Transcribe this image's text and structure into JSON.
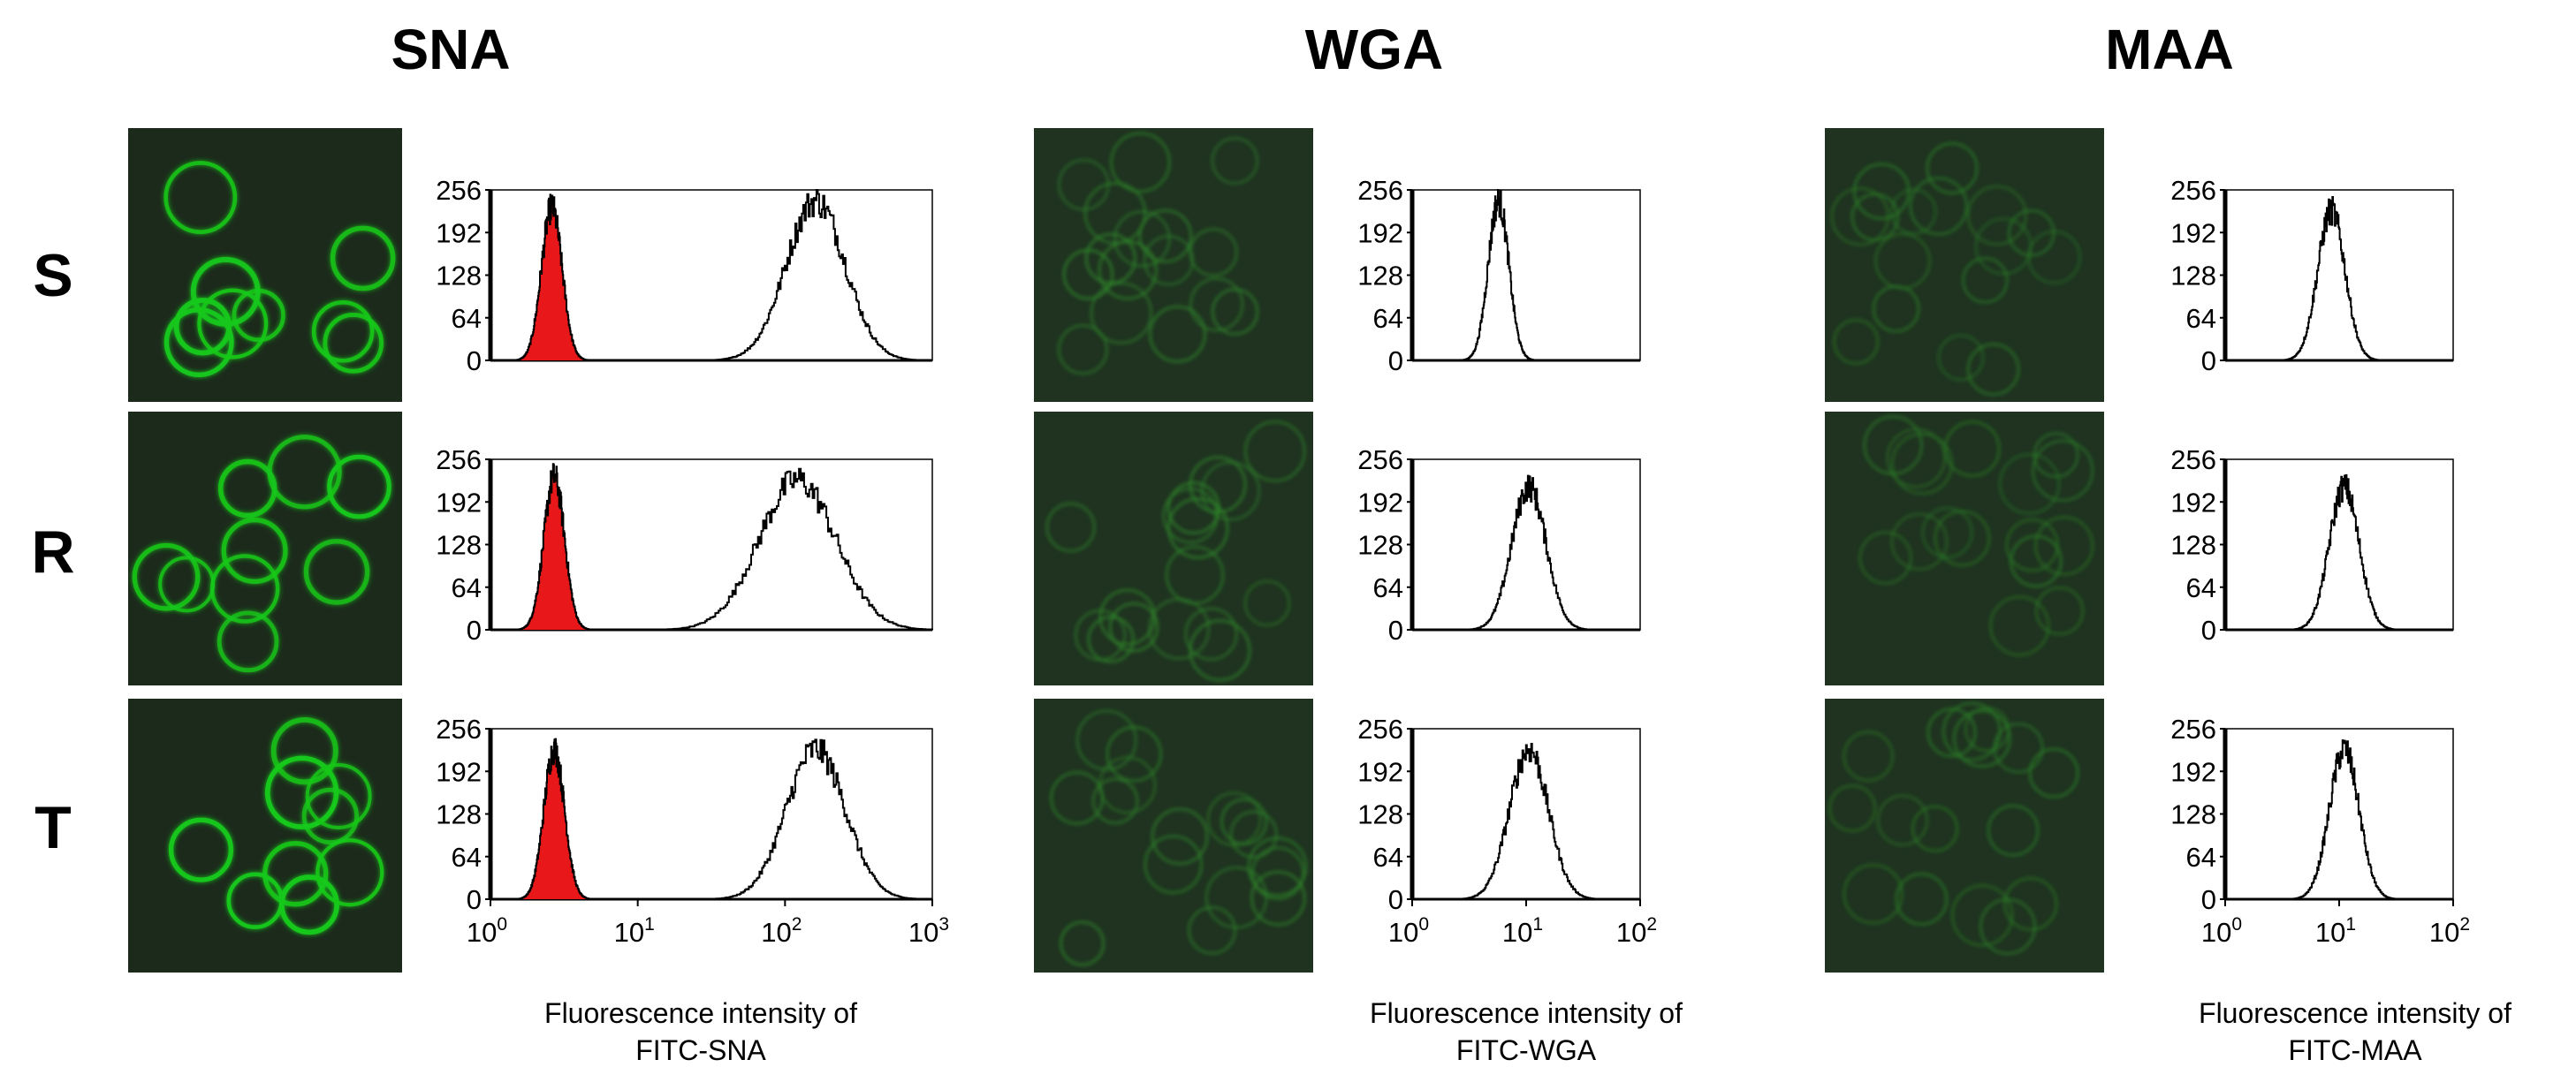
{
  "columns": [
    {
      "title": "SNA",
      "xlabel_line1": "Fluorescence intensity of",
      "xlabel_line2": "FITC-SNA",
      "dim": false,
      "stain_color": "#16c81a"
    },
    {
      "title": "WGA",
      "xlabel_line1": "Fluorescence intensity of",
      "xlabel_line2": "FITC-WGA",
      "dim": true,
      "stain_color": "#2f8a2a"
    },
    {
      "title": "MAA",
      "xlabel_line1": "Fluorescence intensity of",
      "xlabel_line2": "FITC-MAA",
      "dim": true,
      "stain_color": "#2a7d26"
    }
  ],
  "rows": [
    "S",
    "R",
    "T"
  ],
  "colors": {
    "histogram_line": "#000000",
    "control_fill": "#e8181a",
    "micrograph_bg": "#1c2a1c",
    "micrograph_bg_dim": "#1f3320"
  },
  "chart_data": [
    {
      "type": "histogram",
      "title": "SNA",
      "row": "S",
      "xlabel": "Fluorescence intensity of FITC-SNA",
      "x_scale": "log",
      "xlim": [
        1,
        1000
      ],
      "ylim": [
        0,
        256
      ],
      "y_ticks": [
        0,
        64,
        128,
        192,
        256
      ],
      "x_ticks": [
        {
          "base": "10",
          "exp": "0"
        },
        {
          "base": "10",
          "exp": "1"
        },
        {
          "base": "10",
          "exp": "2"
        },
        {
          "base": "10",
          "exp": "3"
        }
      ],
      "series": [
        {
          "fill": "red",
          "peak_x": 2.6,
          "peak_y": 230,
          "log_width": 0.07
        },
        {
          "fill": "none",
          "peak_x": 160,
          "peak_y": 240,
          "log_width": 0.2
        }
      ]
    },
    {
      "type": "histogram",
      "title": "SNA",
      "row": "R",
      "xlabel": "Fluorescence intensity of FITC-SNA",
      "x_scale": "log",
      "xlim": [
        1,
        1000
      ],
      "ylim": [
        0,
        256
      ],
      "y_ticks": [
        0,
        64,
        128,
        192,
        256
      ],
      "x_ticks": [
        {
          "base": "10",
          "exp": "0"
        },
        {
          "base": "10",
          "exp": "1"
        },
        {
          "base": "10",
          "exp": "2"
        },
        {
          "base": "10",
          "exp": "3"
        }
      ],
      "series": [
        {
          "fill": "red",
          "peak_x": 2.7,
          "peak_y": 230,
          "log_width": 0.07
        },
        {
          "fill": "none",
          "peak_x": 120,
          "peak_y": 225,
          "log_width": 0.26
        }
      ]
    },
    {
      "type": "histogram",
      "title": "SNA",
      "row": "T",
      "xlabel": "Fluorescence intensity of FITC-SNA",
      "x_scale": "log",
      "xlim": [
        1,
        1000
      ],
      "ylim": [
        0,
        256
      ],
      "y_ticks": [
        0,
        64,
        128,
        192,
        256
      ],
      "x_ticks": [
        {
          "base": "10",
          "exp": "0"
        },
        {
          "base": "10",
          "exp": "1"
        },
        {
          "base": "10",
          "exp": "2"
        },
        {
          "base": "10",
          "exp": "3"
        }
      ],
      "series": [
        {
          "fill": "red",
          "peak_x": 2.7,
          "peak_y": 225,
          "log_width": 0.07
        },
        {
          "fill": "none",
          "peak_x": 160,
          "peak_y": 225,
          "log_width": 0.2
        }
      ]
    },
    {
      "type": "histogram",
      "title": "WGA",
      "row": "S",
      "xlabel": "Fluorescence intensity of FITC-WGA",
      "x_scale": "log",
      "xlim": [
        1,
        100
      ],
      "ylim": [
        0,
        256
      ],
      "y_ticks": [
        0,
        64,
        128,
        192,
        256
      ],
      "x_ticks": [
        {
          "base": "10",
          "exp": "0"
        },
        {
          "base": "10",
          "exp": "1"
        },
        {
          "base": "10",
          "exp": "2"
        }
      ],
      "series": [
        {
          "fill": "none",
          "peak_x": 5.7,
          "peak_y": 240,
          "log_width": 0.09
        }
      ]
    },
    {
      "type": "histogram",
      "title": "WGA",
      "row": "R",
      "xlabel": "Fluorescence intensity of FITC-WGA",
      "x_scale": "log",
      "xlim": [
        1,
        100
      ],
      "ylim": [
        0,
        256
      ],
      "y_ticks": [
        0,
        64,
        128,
        192,
        256
      ],
      "x_ticks": [
        {
          "base": "10",
          "exp": "0"
        },
        {
          "base": "10",
          "exp": "1"
        },
        {
          "base": "10",
          "exp": "2"
        }
      ],
      "series": [
        {
          "fill": "none",
          "peak_x": 10.5,
          "peak_y": 215,
          "log_width": 0.15
        }
      ]
    },
    {
      "type": "histogram",
      "title": "WGA",
      "row": "T",
      "xlabel": "Fluorescence intensity of FITC-WGA",
      "x_scale": "log",
      "xlim": [
        1,
        100
      ],
      "ylim": [
        0,
        256
      ],
      "y_ticks": [
        0,
        64,
        128,
        192,
        256
      ],
      "x_ticks": [
        {
          "base": "10",
          "exp": "0"
        },
        {
          "base": "10",
          "exp": "1"
        },
        {
          "base": "10",
          "exp": "2"
        }
      ],
      "series": [
        {
          "fill": "none",
          "peak_x": 10.5,
          "peak_y": 225,
          "log_width": 0.17
        }
      ]
    },
    {
      "type": "histogram",
      "title": "MAA",
      "row": "S",
      "xlabel": "Fluorescence intensity of FITC-MAA",
      "x_scale": "log",
      "xlim": [
        1,
        100
      ],
      "ylim": [
        0,
        256
      ],
      "y_ticks": [
        0,
        64,
        128,
        192,
        256
      ],
      "x_ticks": [
        {
          "base": "10",
          "exp": "0"
        },
        {
          "base": "10",
          "exp": "1"
        },
        {
          "base": "10",
          "exp": "2"
        }
      ],
      "series": [
        {
          "fill": "none",
          "peak_x": 8.5,
          "peak_y": 225,
          "log_width": 0.12
        }
      ]
    },
    {
      "type": "histogram",
      "title": "MAA",
      "row": "R",
      "xlabel": "Fluorescence intensity of FITC-MAA",
      "x_scale": "log",
      "xlim": [
        1,
        100
      ],
      "ylim": [
        0,
        256
      ],
      "y_ticks": [
        0,
        64,
        128,
        192,
        256
      ],
      "x_ticks": [
        {
          "base": "10",
          "exp": "0"
        },
        {
          "base": "10",
          "exp": "1"
        },
        {
          "base": "10",
          "exp": "2"
        }
      ],
      "series": [
        {
          "fill": "none",
          "peak_x": 11,
          "peak_y": 215,
          "log_width": 0.13
        }
      ]
    },
    {
      "type": "histogram",
      "title": "MAA",
      "row": "T",
      "xlabel": "Fluorescence intensity of FITC-MAA",
      "x_scale": "log",
      "xlim": [
        1,
        100
      ],
      "ylim": [
        0,
        256
      ],
      "y_ticks": [
        0,
        64,
        128,
        192,
        256
      ],
      "x_ticks": [
        {
          "base": "10",
          "exp": "0"
        },
        {
          "base": "10",
          "exp": "1"
        },
        {
          "base": "10",
          "exp": "2"
        }
      ],
      "series": [
        {
          "fill": "none",
          "peak_x": 11,
          "peak_y": 225,
          "log_width": 0.13
        }
      ]
    }
  ]
}
